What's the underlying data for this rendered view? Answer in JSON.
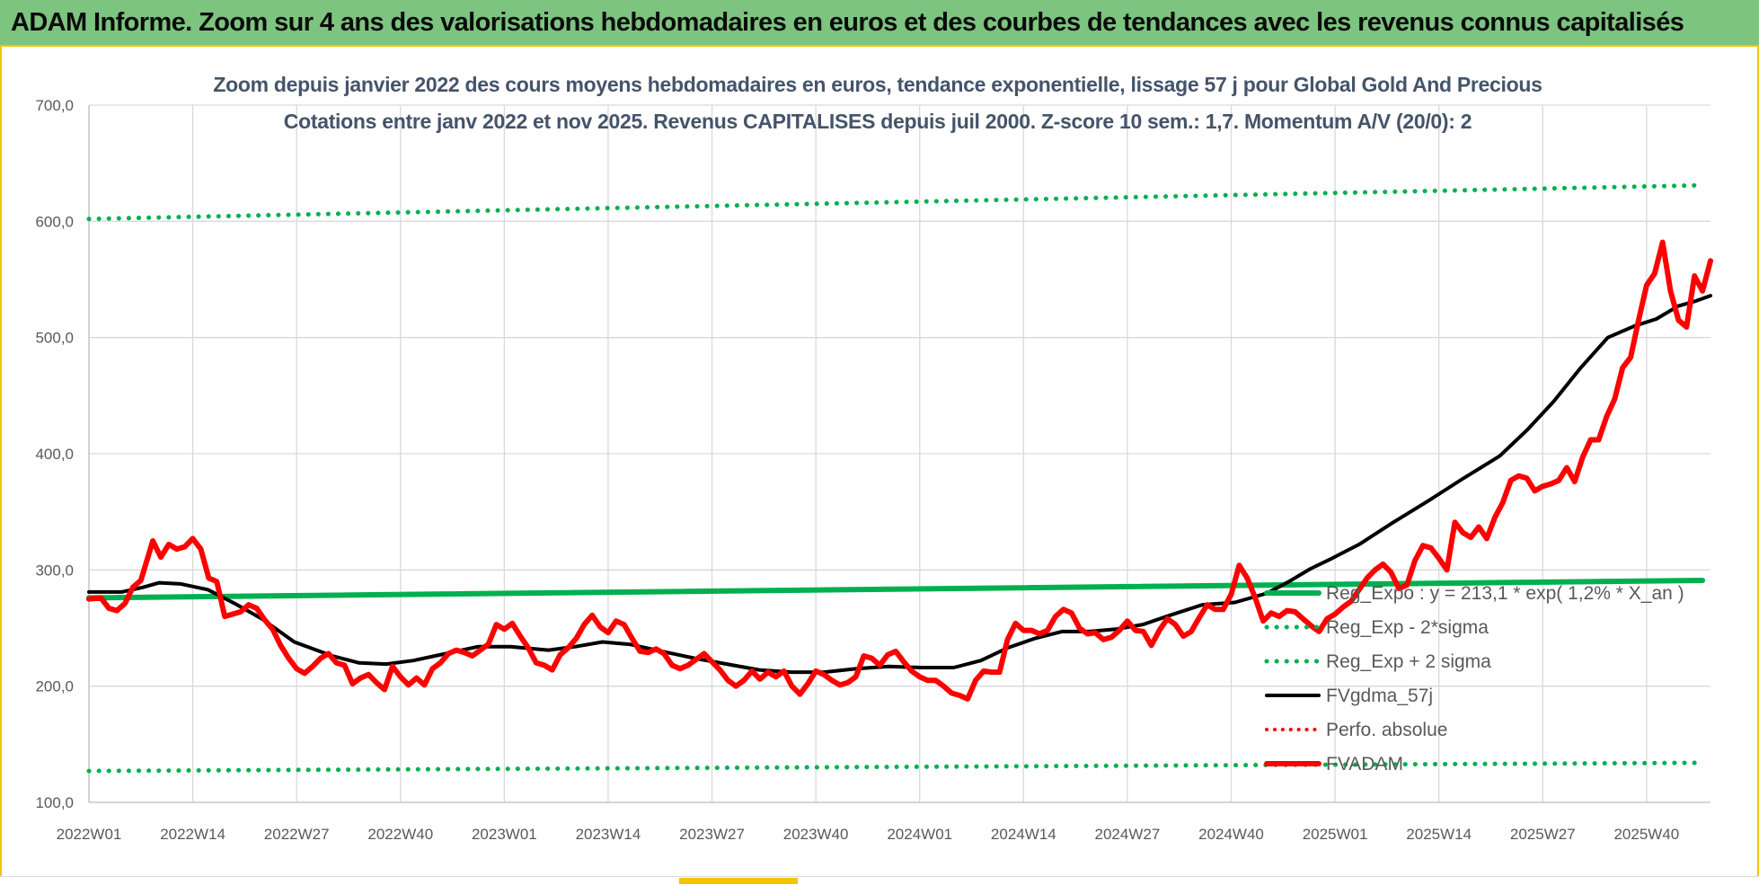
{
  "header": {
    "title": "ADAM Informe. Zoom sur 4 ans des valorisations hebdomadaires en euros et des courbes de tendances avec les revenus connus capitalisés"
  },
  "colors": {
    "header_bg": "#7cc47f",
    "frame_accent": "#f2c500",
    "price": "#ff0000",
    "smooth": "#000000",
    "regression": "#00b050"
  },
  "chart_data": {
    "type": "line",
    "title": "Zoom depuis janvier 2022 des cours moyens hebdomadaires en euros, tendance exponentielle, lissage 57 j pour Global Gold And Precious",
    "subtitle": "Cotations entre janv 2022 et nov 2025. Revenus CAPITALISES depuis juil 2000. Z-score 10 sem.: 1,7. Momentum A/V (20/0): 2",
    "xlabel": "",
    "ylabel": "",
    "ylim": [
      100,
      700
    ],
    "y_ticks": [
      "100,0",
      "200,0",
      "300,0",
      "400,0",
      "500,0",
      "600,0",
      "700,0"
    ],
    "x_ticks": [
      "2022W01",
      "2022W14",
      "2022W27",
      "2022W40",
      "2023W01",
      "2023W14",
      "2023W27",
      "2023W40",
      "2024W01",
      "2024W14",
      "2024W27",
      "2024W40",
      "2025W01",
      "2025W14",
      "2025W27",
      "2025W40"
    ],
    "n_weeks": 203,
    "grid": "vertical and horizontal",
    "legend_position": "right, inside plot",
    "series": [
      {
        "name": "Reg_Expo : y = 213,1 * exp( 1,2% * X_an )",
        "style": "solid",
        "color": "#00b050",
        "width": 6,
        "points": [
          [
            0,
            276
          ],
          [
            202,
            291
          ]
        ]
      },
      {
        "name": "Reg_Exp - 2*sigma",
        "style": "dotted",
        "color": "#00b050",
        "width": 5,
        "points": [
          [
            0,
            127
          ],
          [
            202,
            134
          ]
        ]
      },
      {
        "name": "Reg_Exp + 2 sigma",
        "style": "dotted",
        "color": "#00b050",
        "width": 5,
        "points": [
          [
            0,
            602
          ],
          [
            202,
            631
          ]
        ]
      },
      {
        "name": "FVgdma_57j",
        "style": "solid",
        "color": "#000000",
        "width": 4,
        "points": [
          [
            0,
            281
          ],
          [
            6,
            281
          ],
          [
            10,
            285
          ],
          [
            13,
            289
          ],
          [
            17,
            288
          ],
          [
            22,
            283
          ],
          [
            27,
            271
          ],
          [
            32,
            258
          ],
          [
            38,
            238
          ],
          [
            45,
            226
          ],
          [
            50,
            220
          ],
          [
            55,
            219
          ],
          [
            60,
            222
          ],
          [
            66,
            228
          ],
          [
            72,
            234
          ],
          [
            78,
            234
          ],
          [
            85,
            231
          ],
          [
            90,
            234
          ],
          [
            95,
            238
          ],
          [
            100,
            236
          ],
          [
            106,
            230
          ],
          [
            112,
            224
          ],
          [
            118,
            219
          ],
          [
            124,
            214
          ],
          [
            130,
            212
          ],
          [
            136,
            212
          ],
          [
            142,
            215
          ],
          [
            148,
            217
          ],
          [
            154,
            216
          ],
          [
            160,
            216
          ],
          [
            165,
            222
          ],
          [
            170,
            233
          ],
          [
            175,
            241
          ],
          [
            180,
            247
          ],
          [
            185,
            247
          ],
          [
            190,
            249
          ],
          [
            195,
            253
          ],
          [
            200,
            261
          ],
          [
            206,
            270
          ],
          [
            212,
            272
          ],
          [
            218,
            280
          ],
          [
            222,
            290
          ],
          [
            226,
            301
          ],
          [
            230,
            310
          ],
          [
            235,
            322
          ],
          [
            241,
            340
          ],
          [
            248,
            360
          ],
          [
            254,
            378
          ],
          [
            261,
            398
          ],
          [
            266,
            420
          ],
          [
            271,
            445
          ],
          [
            276,
            474
          ],
          [
            281,
            500
          ],
          [
            286,
            510
          ],
          [
            290,
            516
          ],
          [
            294,
            527
          ],
          [
            297,
            531
          ],
          [
            300,
            536
          ]
        ]
      },
      {
        "name": "Perfo. absolue",
        "style": "dotted",
        "color": "#ff0000",
        "width": 4,
        "points": []
      },
      {
        "name": "FVADAM",
        "style": "solid",
        "color": "#ff0000",
        "width": 6,
        "points": [
          [
            0,
            275
          ],
          [
            3,
            276
          ],
          [
            5,
            267
          ],
          [
            7,
            265
          ],
          [
            9,
            271
          ],
          [
            11,
            285
          ],
          [
            13,
            291
          ],
          [
            16,
            325
          ],
          [
            18,
            311
          ],
          [
            20,
            322
          ],
          [
            22,
            318
          ],
          [
            24,
            320
          ],
          [
            26,
            327
          ],
          [
            28,
            318
          ],
          [
            30,
            293
          ],
          [
            32,
            290
          ],
          [
            34,
            260
          ],
          [
            36,
            262
          ],
          [
            38,
            264
          ],
          [
            40,
            270
          ],
          [
            42,
            267
          ],
          [
            44,
            257
          ],
          [
            46,
            249
          ],
          [
            48,
            235
          ],
          [
            50,
            224
          ],
          [
            52,
            215
          ],
          [
            54,
            211
          ],
          [
            56,
            217
          ],
          [
            58,
            224
          ],
          [
            60,
            228
          ],
          [
            62,
            220
          ],
          [
            64,
            218
          ],
          [
            66,
            202
          ],
          [
            68,
            207
          ],
          [
            70,
            210
          ],
          [
            72,
            203
          ],
          [
            74,
            197
          ],
          [
            76,
            217
          ],
          [
            78,
            208
          ],
          [
            80,
            201
          ],
          [
            82,
            207
          ],
          [
            84,
            201
          ],
          [
            86,
            215
          ],
          [
            88,
            220
          ],
          [
            90,
            228
          ],
          [
            92,
            231
          ],
          [
            94,
            229
          ],
          [
            96,
            226
          ],
          [
            98,
            231
          ],
          [
            100,
            236
          ],
          [
            102,
            253
          ],
          [
            104,
            249
          ],
          [
            106,
            254
          ],
          [
            108,
            243
          ],
          [
            110,
            233
          ],
          [
            112,
            220
          ],
          [
            114,
            218
          ],
          [
            116,
            214
          ],
          [
            118,
            227
          ],
          [
            120,
            233
          ],
          [
            122,
            241
          ],
          [
            124,
            253
          ],
          [
            126,
            261
          ],
          [
            128,
            251
          ],
          [
            130,
            246
          ],
          [
            132,
            256
          ],
          [
            134,
            253
          ],
          [
            136,
            241
          ],
          [
            138,
            230
          ],
          [
            140,
            229
          ],
          [
            142,
            232
          ],
          [
            144,
            228
          ],
          [
            146,
            218
          ],
          [
            148,
            215
          ],
          [
            150,
            218
          ],
          [
            152,
            223
          ],
          [
            154,
            228
          ],
          [
            156,
            221
          ],
          [
            158,
            214
          ],
          [
            160,
            205
          ],
          [
            162,
            200
          ],
          [
            164,
            205
          ],
          [
            166,
            213
          ],
          [
            168,
            206
          ],
          [
            170,
            212
          ],
          [
            172,
            208
          ],
          [
            174,
            213
          ],
          [
            176,
            200
          ],
          [
            178,
            193
          ],
          [
            180,
            202
          ],
          [
            182,
            213
          ],
          [
            184,
            210
          ],
          [
            186,
            205
          ],
          [
            188,
            201
          ],
          [
            190,
            203
          ],
          [
            192,
            208
          ],
          [
            194,
            226
          ],
          [
            196,
            224
          ],
          [
            198,
            218
          ],
          [
            200,
            227
          ],
          [
            202,
            230
          ],
          [
            204,
            221
          ],
          [
            206,
            213
          ],
          [
            208,
            208
          ],
          [
            210,
            205
          ],
          [
            212,
            205
          ],
          [
            214,
            200
          ],
          [
            216,
            194
          ],
          [
            218,
            192
          ],
          [
            220,
            189
          ],
          [
            222,
            205
          ],
          [
            224,
            213
          ],
          [
            226,
            212
          ],
          [
            228,
            212
          ],
          [
            230,
            240
          ],
          [
            232,
            254
          ],
          [
            234,
            248
          ],
          [
            236,
            248
          ],
          [
            238,
            245
          ],
          [
            240,
            248
          ],
          [
            242,
            260
          ],
          [
            244,
            266
          ],
          [
            246,
            263
          ],
          [
            248,
            250
          ],
          [
            250,
            245
          ],
          [
            252,
            246
          ],
          [
            254,
            240
          ],
          [
            256,
            242
          ],
          [
            258,
            248
          ],
          [
            260,
            256
          ],
          [
            262,
            248
          ],
          [
            264,
            247
          ],
          [
            266,
            235
          ],
          [
            268,
            248
          ],
          [
            270,
            258
          ],
          [
            272,
            253
          ],
          [
            274,
            243
          ],
          [
            276,
            247
          ],
          [
            278,
            259
          ],
          [
            280,
            270
          ],
          [
            282,
            266
          ],
          [
            284,
            266
          ],
          [
            286,
            279
          ],
          [
            288,
            304
          ],
          [
            290,
            293
          ],
          [
            292,
            276
          ],
          [
            294,
            256
          ],
          [
            296,
            263
          ],
          [
            298,
            260
          ],
          [
            300,
            265
          ],
          [
            302,
            264
          ],
          [
            304,
            258
          ],
          [
            306,
            252
          ],
          [
            308,
            247
          ],
          [
            310,
            258
          ],
          [
            312,
            262
          ],
          [
            314,
            268
          ],
          [
            316,
            273
          ],
          [
            318,
            283
          ],
          [
            320,
            293
          ],
          [
            322,
            300
          ],
          [
            324,
            305
          ],
          [
            326,
            298
          ],
          [
            328,
            284
          ],
          [
            330,
            287
          ],
          [
            332,
            308
          ],
          [
            334,
            321
          ],
          [
            336,
            319
          ],
          [
            338,
            310
          ],
          [
            340,
            300
          ],
          [
            342,
            341
          ],
          [
            344,
            332
          ],
          [
            346,
            328
          ],
          [
            348,
            337
          ],
          [
            350,
            327
          ],
          [
            352,
            345
          ],
          [
            354,
            358
          ],
          [
            356,
            377
          ],
          [
            358,
            381
          ],
          [
            360,
            379
          ],
          [
            362,
            368
          ],
          [
            364,
            372
          ],
          [
            366,
            374
          ],
          [
            368,
            377
          ],
          [
            370,
            388
          ],
          [
            372,
            376
          ],
          [
            374,
            397
          ],
          [
            376,
            412
          ],
          [
            378,
            412
          ],
          [
            380,
            432
          ],
          [
            382,
            447
          ],
          [
            384,
            474
          ],
          [
            386,
            483
          ],
          [
            388,
            515
          ],
          [
            390,
            545
          ],
          [
            392,
            555
          ],
          [
            394,
            582
          ],
          [
            396,
            540
          ],
          [
            398,
            515
          ],
          [
            400,
            509
          ],
          [
            402,
            553
          ],
          [
            404,
            540
          ],
          [
            406,
            566
          ]
        ]
      }
    ]
  }
}
